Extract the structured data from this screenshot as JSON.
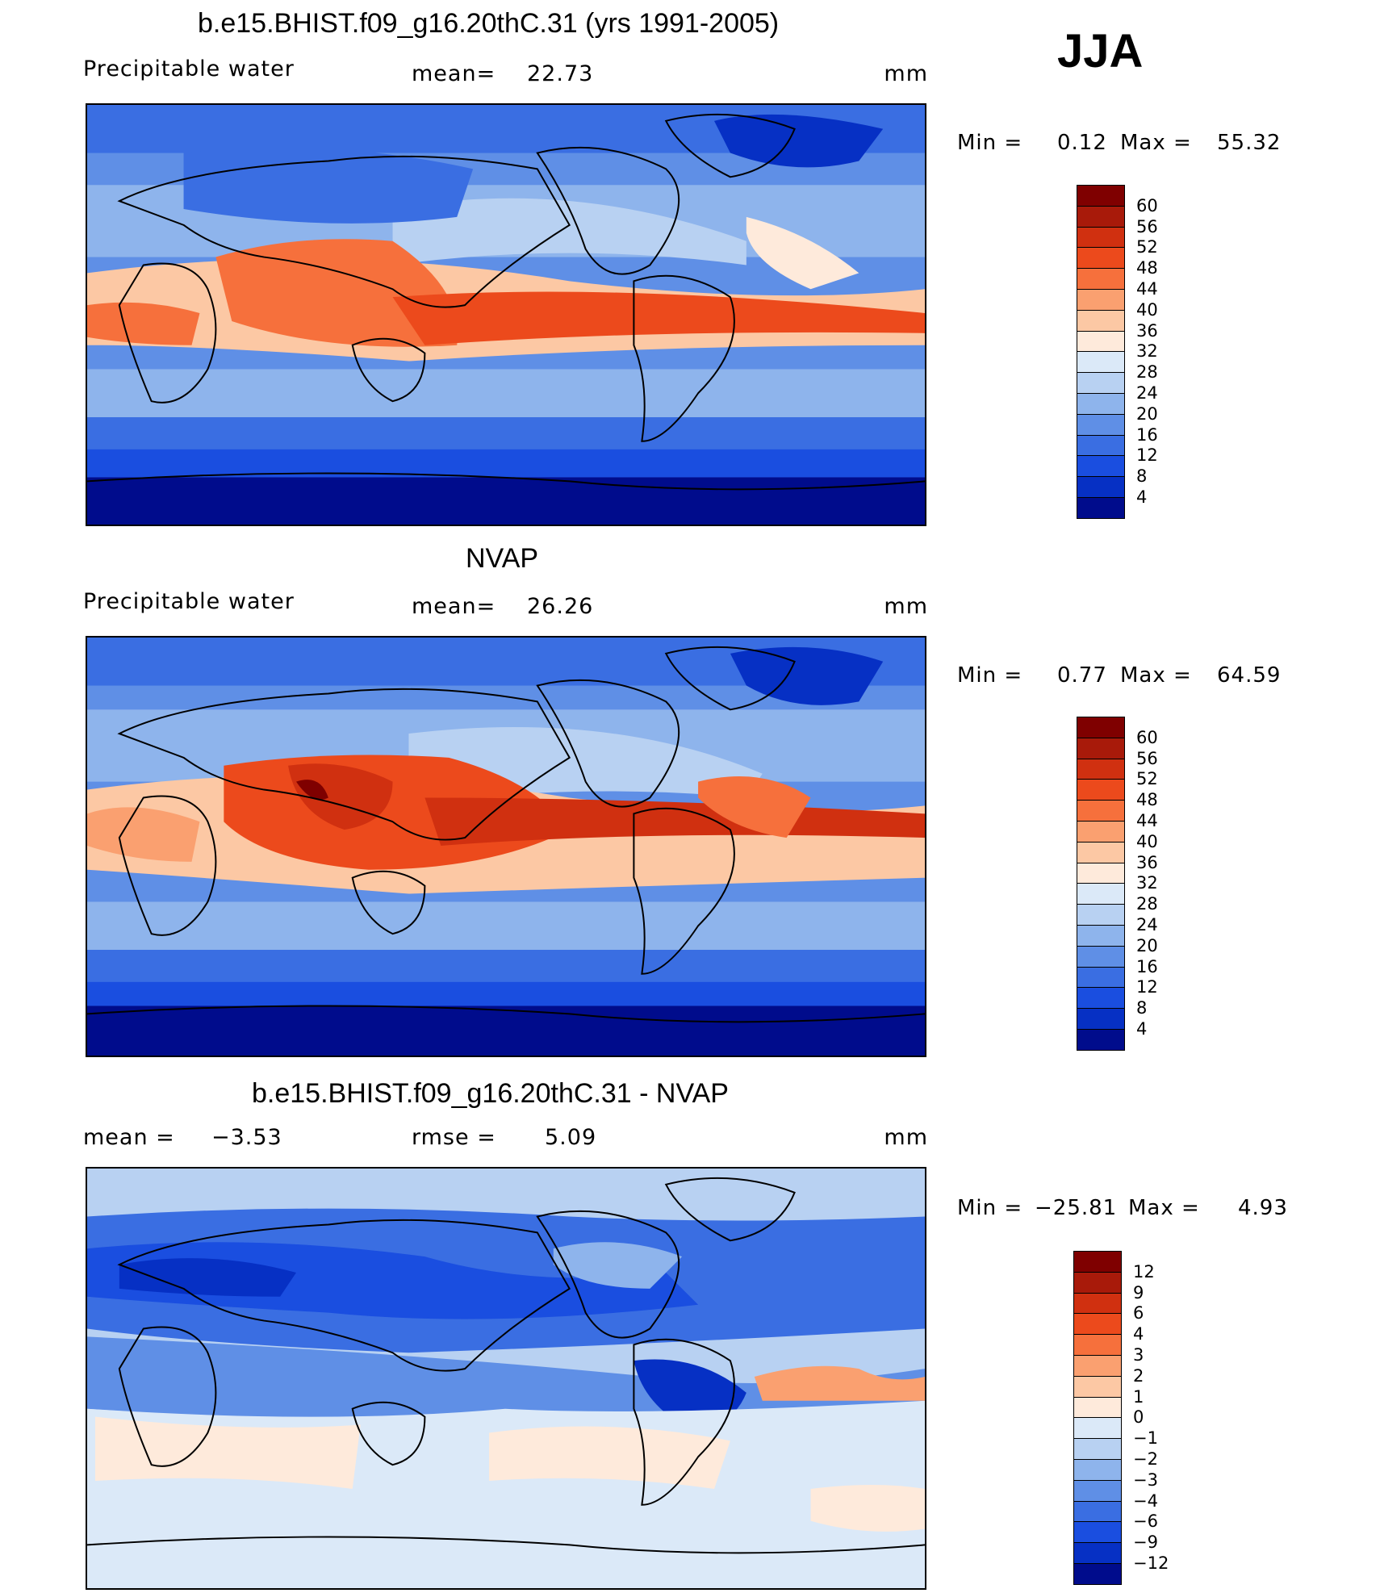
{
  "season": "JJA",
  "units": "mm",
  "panels": [
    {
      "title": "b.e15.BHIST.f09_g16.20thC.31 (yrs 1991-2005)",
      "variable": "Precipitable water",
      "stat1_label": "mean=",
      "stat1_value": "22.73",
      "stat2_label": "",
      "stat2_value": "",
      "min_label": "Min =",
      "min_value": "0.12",
      "max_label": "Max =",
      "max_value": "55.32",
      "colorbar_ticks": [
        "60",
        "56",
        "52",
        "48",
        "44",
        "40",
        "36",
        "32",
        "28",
        "24",
        "20",
        "16",
        "12",
        "8",
        "4"
      ]
    },
    {
      "title": "NVAP",
      "variable": "Precipitable water",
      "stat1_label": "mean=",
      "stat1_value": "26.26",
      "stat2_label": "",
      "stat2_value": "",
      "min_label": "Min =",
      "min_value": "0.77",
      "max_label": "Max =",
      "max_value": "64.59",
      "colorbar_ticks": [
        "60",
        "56",
        "52",
        "48",
        "44",
        "40",
        "36",
        "32",
        "28",
        "24",
        "20",
        "16",
        "12",
        "8",
        "4"
      ]
    },
    {
      "title": "b.e15.BHIST.f09_g16.20thC.31 - NVAP",
      "variable": "",
      "stat1_label": "mean =",
      "stat1_value": "−3.53",
      "stat2_label": "rmse =",
      "stat2_value": "5.09",
      "min_label": "Min =",
      "min_value": "−25.81",
      "max_label": "Max =",
      "max_value": "4.93",
      "colorbar_ticks": [
        "12",
        "9",
        "6",
        "4",
        "3",
        "2",
        "1",
        "0",
        "−1",
        "−2",
        "−3",
        "−4",
        "−6",
        "−9",
        "−12"
      ]
    }
  ],
  "colors": {
    "scale16": [
      "#7f0000",
      "#a81a0a",
      "#d03010",
      "#ec4a1c",
      "#f6703c",
      "#faa070",
      "#fcc8a4",
      "#feeadb",
      "#dbe9f8",
      "#b8d1f2",
      "#8eb4ec",
      "#5f8fe6",
      "#3a6ee2",
      "#1a4ee0",
      "#0630c4",
      "#000c8c"
    ],
    "coast": "#000000"
  }
}
